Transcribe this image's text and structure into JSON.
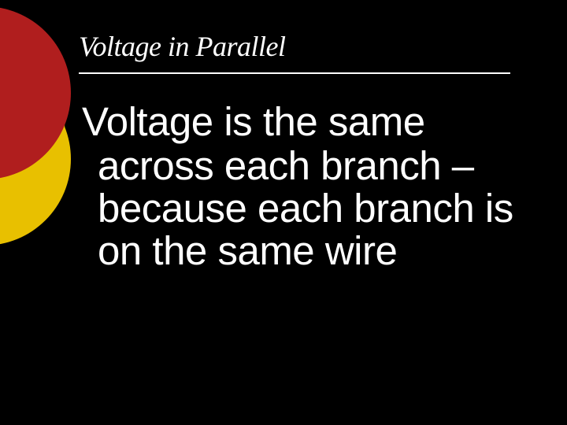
{
  "slide": {
    "title": "Voltage in Parallel",
    "bullet_glyph": "¡",
    "body": "Voltage is the same across each branch – because each branch is on the same wire"
  },
  "style": {
    "background_color": "#000000",
    "title_color": "#ffffff",
    "title_font": "Georgia, italic",
    "title_fontsize": 36,
    "underline_color": "#ffffff",
    "body_color": "#ffffff",
    "body_fontsize": 51,
    "bullet_color": "#d9a300",
    "circle_red": "#b01e1e",
    "circle_yellow": "#e8c000",
    "circle_diameter": 220,
    "slide_width": 720,
    "slide_height": 540
  }
}
